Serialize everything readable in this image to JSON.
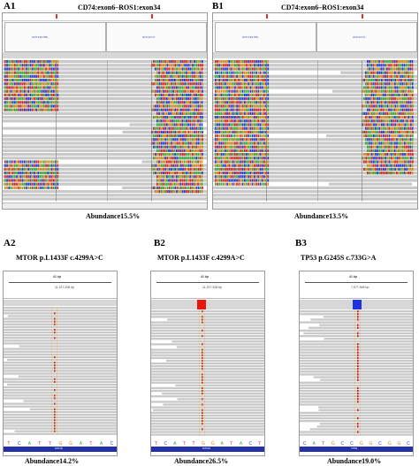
{
  "panels": {
    "A1": {
      "label": "A1",
      "title": "CD74:exon6–ROS1:exon34",
      "abundance": "Abundance15.5%",
      "header_left": "chr5:149,785,..",
      "header_right": "chr6:117,6.."
    },
    "B1": {
      "label": "B1",
      "title": "CD74:exon6–ROS1:exon34",
      "abundance": "Abundance13.5%",
      "header_left": "chr5:149,785,..",
      "header_right": "chr6:117,6.."
    },
    "A2": {
      "label": "A2",
      "title": "MTOR  p.L1433F  c.4299A>C",
      "abundance": "Abundance14.2%",
      "scale_label": "41 bp",
      "coord": "11,227,206 bp",
      "gene": "MTOR",
      "bases": [
        "T",
        "C",
        "A",
        "T",
        "T",
        "G",
        "G",
        "A",
        "T",
        "A",
        "C"
      ]
    },
    "B2": {
      "label": "B2",
      "title": "MTOR  p.L1433F  c.4299A>C",
      "abundance": "Abundance26.5%",
      "scale_label": "41 bp",
      "coord": "11,227,206 bp",
      "gene": "MTOR",
      "bases": [
        "T",
        "C",
        "A",
        "T",
        "T",
        "G",
        "G",
        "A",
        "T",
        "A",
        "C",
        "T"
      ],
      "coverage_color": "#e8170b"
    },
    "B3": {
      "label": "B3",
      "title": "TP53  p.G245S  c.733G>A",
      "abundance": "Abundance19.0%",
      "scale_label": "41 bp",
      "coord": "7,577,548 bp",
      "gene": "TP53",
      "bases": [
        "C",
        "A",
        "T",
        "G",
        "C",
        "C",
        "G",
        "G",
        "C",
        "G",
        "G",
        "C"
      ],
      "coverage_color": "#1f32e0"
    }
  },
  "colors": {
    "A": "#3aa83a",
    "C": "#2a3dd1",
    "G": "#d48a1a",
    "T": "#d12a2a",
    "read": "#c9c9c9",
    "mismatch_line": "#c04020"
  }
}
